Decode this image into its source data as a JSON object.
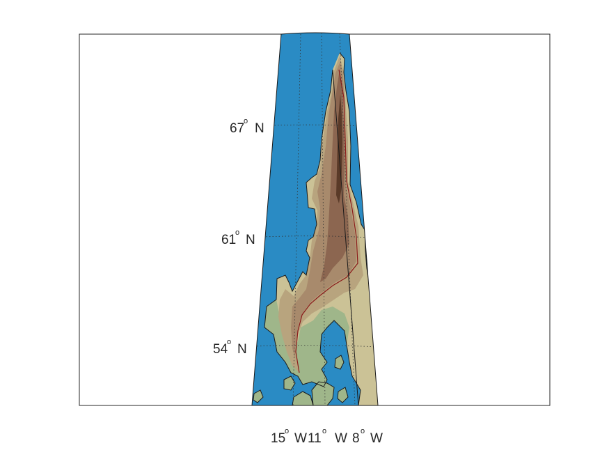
{
  "map": {
    "colors": {
      "ocean": "#2a8bc4",
      "lowland": "#9fb68a",
      "plain": "#cbc296",
      "hills": "#b8a47e",
      "uplands": "#a88a6c",
      "mountains": "#8c6650",
      "peaks": "#5a3a28",
      "coast_line": "#1a1a1a",
      "contour_line": "#8a1a1a",
      "frame": "#262626"
    },
    "lat_labels": [
      {
        "value": "67",
        "suffix": "N"
      },
      {
        "value": "61",
        "suffix": "N"
      },
      {
        "value": "54",
        "suffix": "N"
      }
    ],
    "lon_labels": [
      {
        "value": "15",
        "suffix": "W"
      },
      {
        "value": "11",
        "suffix": "W"
      },
      {
        "value": "8",
        "suffix": "W"
      }
    ],
    "degree_symbol": "o"
  }
}
